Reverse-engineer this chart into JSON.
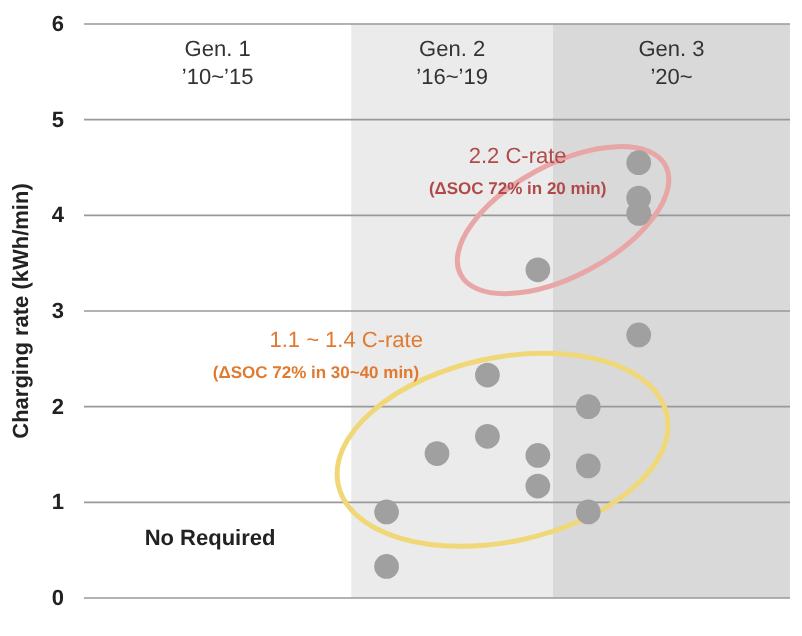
{
  "chart_data": {
    "type": "scatter",
    "ylabel": "Charging rate (kWh/min)",
    "categories": [
      null,
      null,
      null,
      null,
      null,
      null,
      null,
      null,
      null,
      null,
      null,
      null,
      null,
      null,
      null
    ],
    "series": [
      {
        "color": "#a0a0a0",
        "values": [
          null,
          null,
          null,
          null,
          null,
          null,
          0.9,
          1.51,
          2.33,
          1.49,
          2.0,
          2.75,
          null,
          null,
          null
        ]
      },
      {
        "color": "#a0a0a0",
        "values": [
          null,
          null,
          null,
          null,
          null,
          null,
          0.33,
          null,
          1.69,
          1.17,
          1.38,
          4.55,
          null,
          null,
          null
        ]
      },
      {
        "color": "#a0a0a0",
        "values": [
          null,
          null,
          null,
          null,
          null,
          null,
          null,
          null,
          null,
          3.43,
          0.9,
          4.18,
          null,
          null,
          null
        ]
      },
      {
        "color": "#a0a0a0",
        "values": [
          null,
          null,
          null,
          null,
          null,
          null,
          null,
          null,
          null,
          null,
          null,
          4.02,
          null,
          null,
          null
        ]
      }
    ],
    "marker": "circle",
    "ylim": [
      0,
      6
    ],
    "yticks": [
      0,
      1,
      2,
      3,
      4,
      5,
      6
    ],
    "tick_labels": "y",
    "grid": "y",
    "annotations": [
      "Gen. 1\n’10~’15",
      "Gen. 2\n’16~’19",
      "Gen. 3\n’20~",
      "2.2 C-rate",
      "(ΔSOC 72% in 20 min)",
      "1.1 ~ 1.4 C-rate",
      "(ΔSOC 72% in 30~40 min)",
      "No Required"
    ]
  }
}
